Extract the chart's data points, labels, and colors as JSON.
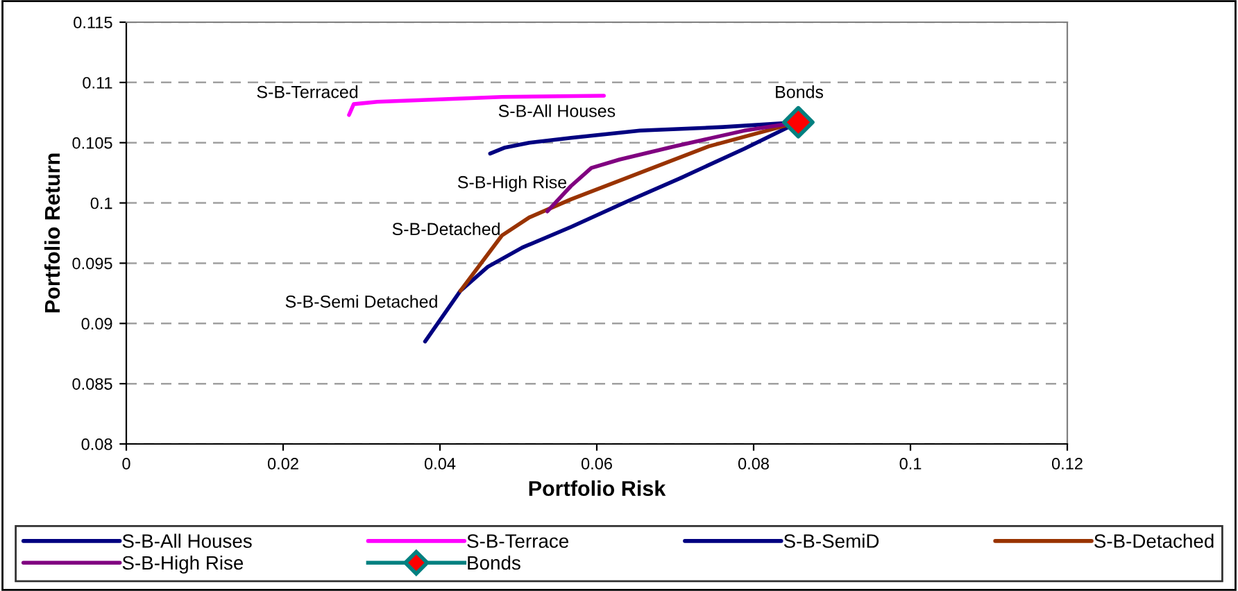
{
  "chart_data": {
    "type": "line",
    "xlabel": "Portfolio Risk",
    "ylabel": "Portfolio Return",
    "xlim": [
      0,
      0.12
    ],
    "xticks": [
      0,
      0.02,
      0.04,
      0.06,
      0.08,
      0.1,
      0.12
    ],
    "ylim": [
      0.08,
      0.115
    ],
    "yticks": [
      0.08,
      0.085,
      0.09,
      0.095,
      0.1,
      0.105,
      0.11,
      0.115
    ],
    "grid": "y",
    "legend": "bottom",
    "marker": "none",
    "line_style": "solid",
    "series": [
      {
        "name": "S-B-All Houses",
        "color": "#000080",
        "x": [
          0.0464,
          0.0483,
          0.0514,
          0.0567,
          0.0655,
          0.0761,
          0.0857
        ],
        "values": [
          0.1041,
          0.1046,
          0.105,
          0.1054,
          0.106,
          0.1063,
          0.1067
        ]
      },
      {
        "name": "S-B-Terrace",
        "color": "#ff00ff",
        "x": [
          0.0284,
          0.029,
          0.032,
          0.0479,
          0.0609
        ],
        "values": [
          0.1073,
          0.1082,
          0.1084,
          0.1088,
          0.1089
        ]
      },
      {
        "name": "S-B-SemiD",
        "color": "#000080",
        "x": [
          0.0381,
          0.0426,
          0.0461,
          0.0505,
          0.0567,
          0.0638,
          0.0708,
          0.0788,
          0.0857
        ],
        "values": [
          0.0885,
          0.0927,
          0.0947,
          0.0963,
          0.098,
          0.1001,
          0.1021,
          0.1045,
          0.1067
        ]
      },
      {
        "name": "S-B-Detached",
        "color": "#993300",
        "x": [
          0.0426,
          0.0479,
          0.0514,
          0.0567,
          0.0655,
          0.0743,
          0.0857
        ],
        "values": [
          0.0927,
          0.0973,
          0.0988,
          0.1003,
          0.1025,
          0.1047,
          0.1067
        ]
      },
      {
        "name": "S-B-High Rise",
        "color": "#800080",
        "x": [
          0.0537,
          0.0567,
          0.0593,
          0.0629,
          0.0699,
          0.0788,
          0.0857
        ],
        "values": [
          0.0993,
          0.1014,
          0.1029,
          0.1036,
          0.1047,
          0.106,
          0.1067
        ]
      },
      {
        "name": "Bonds",
        "type": "scatter",
        "marker": "diamond",
        "color": "#008080",
        "colors": [
          "#ff0000"
        ],
        "x": [
          0.0857
        ],
        "values": [
          0.1067
        ]
      }
    ],
    "annotations": [
      "S-B-Terraced",
      "S-B-All Houses",
      "S-B-High Rise",
      "S-B-Detached",
      "S-B-Semi Detached",
      "Bonds"
    ]
  }
}
